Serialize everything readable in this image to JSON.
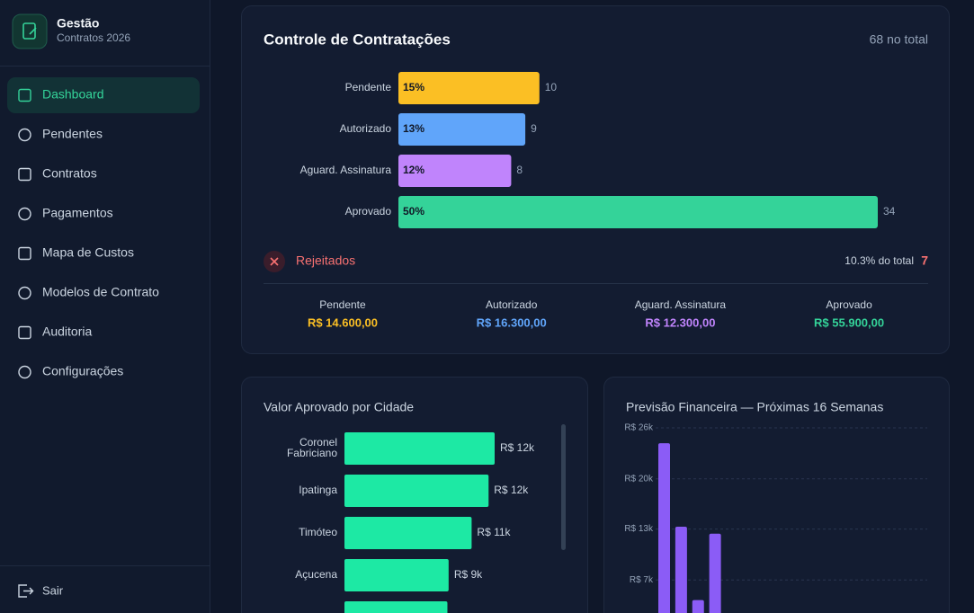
{
  "sidebar": {
    "brand": {
      "title": "Gestão",
      "subtitle": "Contratos 2026"
    },
    "nav": [
      "Dashboard",
      "Pendentes",
      "Contratos",
      "Pagamentos",
      "Mapa de Custos",
      "Modelos de Contrato",
      "Auditoria",
      "Configurações"
    ],
    "active": 0,
    "logout": "Sair"
  },
  "status_panel": {
    "title": "Controle de Contratações",
    "total": "68 no total",
    "chart_data": {
      "type": "bar",
      "orientation": "horizontal",
      "categories": [
        "Pendente",
        "Autorizado",
        "Aguard. Assinatura",
        "Aprovado"
      ],
      "values": [
        10,
        9,
        8,
        34
      ],
      "share_labels": [
        "15%",
        "13%",
        "12%",
        "50%"
      ],
      "colors": [
        "#fbbf24",
        "#60a5fa",
        "#c084fc",
        "#34d399"
      ]
    },
    "rejected": {
      "label": "Rejeitados",
      "share": "10.3% do total",
      "count": 7
    },
    "summary": [
      {
        "label": "Pendente",
        "amount": "R$ 14.600,00"
      },
      {
        "label": "Autorizado",
        "amount": "R$ 16.300,00"
      },
      {
        "label": "Aguard. Assinatura",
        "amount": "R$ 12.300,00"
      },
      {
        "label": "Aprovado",
        "amount": "R$ 55.900,00"
      }
    ]
  },
  "city_panel": {
    "chart_data": {
      "type": "bar",
      "orientation": "horizontal",
      "title": "Valor Aprovado por Cidade",
      "categories": [
        "Coronel Fabriciano",
        "Ipatinga",
        "Timóteo",
        "Açucena",
        null
      ],
      "values": [
        12.4,
        11.9,
        10.5,
        8.6,
        8.5
      ],
      "value_labels": [
        "R$ 12k",
        "R$ 12k",
        "R$ 11k",
        "R$ 9k",
        null
      ],
      "color": "#1de9a4"
    }
  },
  "forecast_panel": {
    "chart_data": {
      "type": "bar",
      "title": "Previsão Financeira — Próximas 16 Semanas",
      "categories": [
        null,
        null,
        null,
        null,
        null,
        null,
        null,
        null,
        null,
        null,
        null,
        null,
        null,
        null,
        null,
        null
      ],
      "values": [
        24.3,
        13.5,
        4.0,
        12.6,
        0,
        0,
        0,
        0,
        0,
        0,
        0,
        0,
        0,
        0,
        0,
        0
      ],
      "ylim": [
        0,
        26.3
      ],
      "yticks": [
        {
          "value": 6.6,
          "label": "R$ 7k"
        },
        {
          "value": 13.2,
          "label": "R$ 13k"
        },
        {
          "value": 19.7,
          "label": "R$ 20k"
        },
        {
          "value": 26.3,
          "label": "R$ 26k"
        }
      ],
      "grid": true,
      "color": "#8b5cf6"
    }
  }
}
